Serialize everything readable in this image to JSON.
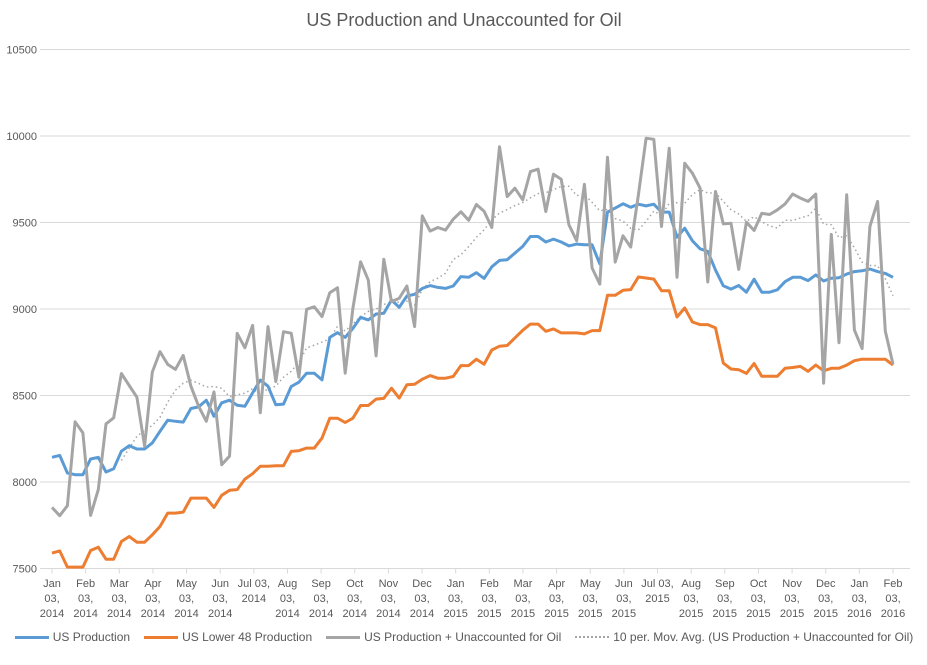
{
  "chart_data": {
    "type": "line",
    "title": "US Production and Unaccounted for Oil",
    "xlabel": "",
    "ylabel": "",
    "ylim": [
      7500,
      10500
    ],
    "yticks": [
      7500,
      8000,
      8500,
      9000,
      9500,
      10000,
      10500
    ],
    "grid": true,
    "legend_position": "bottom",
    "x_tick_labels": [
      [
        "Jan",
        "03,",
        "2014"
      ],
      [
        "Feb",
        "03,",
        "2014"
      ],
      [
        "Mar",
        "03,",
        "2014"
      ],
      [
        "Apr",
        "03,",
        "2014"
      ],
      [
        "May",
        "03,",
        "2014"
      ],
      [
        "Jun",
        "03,",
        "2014"
      ],
      [
        "Jul 03,",
        "2014"
      ],
      [
        "Aug",
        "03,",
        "2014"
      ],
      [
        "Sep",
        "03,",
        "2014"
      ],
      [
        "Oct",
        "03,",
        "2014"
      ],
      [
        "Nov",
        "03,",
        "2014"
      ],
      [
        "Dec",
        "03,",
        "2014"
      ],
      [
        "Jan",
        "03,",
        "2015"
      ],
      [
        "Feb",
        "03,",
        "2015"
      ],
      [
        "Mar",
        "03,",
        "2015"
      ],
      [
        "Apr",
        "03,",
        "2015"
      ],
      [
        "May",
        "03,",
        "2015"
      ],
      [
        "Jun",
        "03,",
        "2015"
      ],
      [
        "Jul 03,",
        "2015"
      ],
      [
        "Aug",
        "03,",
        "2015"
      ],
      [
        "Sep",
        "03,",
        "2015"
      ],
      [
        "Oct",
        "03,",
        "2015"
      ],
      [
        "Nov",
        "03,",
        "2015"
      ],
      [
        "Dec",
        "03,",
        "2015"
      ],
      [
        "Jan",
        "03,",
        "2016"
      ],
      [
        "Feb",
        "03,",
        "2016"
      ]
    ],
    "series": [
      {
        "name": "US Production",
        "color": "#5b9bd5",
        "style": "solid",
        "values": [
          8143,
          8154,
          8052,
          8042,
          8042,
          8133,
          8143,
          8058,
          8077,
          8178,
          8210,
          8191,
          8191,
          8226,
          8293,
          8357,
          8351,
          8346,
          8425,
          8434,
          8473,
          8380,
          8458,
          8473,
          8444,
          8438,
          8515,
          8589,
          8554,
          8446,
          8450,
          8552,
          8577,
          8629,
          8629,
          8590,
          8836,
          8863,
          8836,
          8888,
          8952,
          8937,
          8971,
          8975,
          9052,
          9010,
          9075,
          9085,
          9119,
          9135,
          9125,
          9119,
          9133,
          9187,
          9183,
          9210,
          9177,
          9244,
          9281,
          9285,
          9323,
          9362,
          9419,
          9419,
          9387,
          9404,
          9387,
          9365,
          9375,
          9371,
          9371,
          9260,
          9560,
          9583,
          9608,
          9588,
          9606,
          9596,
          9606,
          9560,
          9560,
          9415,
          9467,
          9394,
          9348,
          9333,
          9225,
          9134,
          9115,
          9136,
          9097,
          9172,
          9097,
          9097,
          9111,
          9158,
          9183,
          9183,
          9164,
          9197,
          9162,
          9178,
          9181,
          9202,
          9216,
          9221,
          9231,
          9216,
          9206,
          9183
        ]
      },
      {
        "name": "US Lower 48 Production",
        "color": "#ed7d31",
        "style": "solid",
        "values": [
          7589,
          7602,
          7508,
          7508,
          7508,
          7604,
          7623,
          7554,
          7554,
          7656,
          7685,
          7652,
          7652,
          7695,
          7743,
          7820,
          7820,
          7826,
          7907,
          7907,
          7907,
          7853,
          7923,
          7952,
          7956,
          8017,
          8048,
          8091,
          8091,
          8094,
          8094,
          8177,
          8181,
          8196,
          8196,
          8254,
          8369,
          8369,
          8344,
          8369,
          8442,
          8442,
          8479,
          8483,
          8542,
          8485,
          8562,
          8565,
          8594,
          8615,
          8600,
          8600,
          8610,
          8673,
          8673,
          8710,
          8681,
          8763,
          8785,
          8789,
          8833,
          8877,
          8913,
          8913,
          8871,
          8885,
          8862,
          8862,
          8862,
          8856,
          8875,
          8875,
          9079,
          9079,
          9108,
          9112,
          9185,
          9179,
          9173,
          9106,
          9106,
          8954,
          9006,
          8925,
          8910,
          8910,
          8891,
          8687,
          8653,
          8649,
          8628,
          8685,
          8611,
          8611,
          8611,
          8657,
          8662,
          8668,
          8640,
          8676,
          8643,
          8657,
          8657,
          8676,
          8701,
          8710,
          8710,
          8710,
          8710,
          8676
        ]
      },
      {
        "name": "US Production + Unaccounted for Oil",
        "color": "#a5a5a5",
        "style": "solid",
        "values": [
          7853,
          7805,
          7863,
          8348,
          8284,
          7807,
          7956,
          8336,
          8371,
          8627,
          8558,
          8490,
          8207,
          8635,
          8753,
          8680,
          8651,
          8732,
          8554,
          8438,
          8351,
          8521,
          8100,
          8149,
          8859,
          8776,
          8905,
          8400,
          8898,
          8581,
          8869,
          8860,
          8606,
          8998,
          9013,
          8956,
          9094,
          9123,
          8629,
          9004,
          9273,
          9167,
          8729,
          9288,
          9042,
          9062,
          9133,
          8898,
          9538,
          9450,
          9471,
          9456,
          9519,
          9562,
          9513,
          9604,
          9565,
          9471,
          9938,
          9650,
          9698,
          9631,
          9794,
          9808,
          9563,
          9779,
          9750,
          9487,
          9394,
          9721,
          9237,
          9144,
          9877,
          9271,
          9423,
          9358,
          9660,
          9987,
          9981,
          9477,
          9929,
          9183,
          9842,
          9785,
          9698,
          9156,
          9679,
          9492,
          9496,
          9229,
          9502,
          9454,
          9553,
          9546,
          9573,
          9607,
          9664,
          9641,
          9622,
          9664,
          8571,
          9431,
          8805,
          9660,
          8878,
          8771,
          9477,
          9622,
          8872,
          8681
        ]
      },
      {
        "name": "10 per. Mov. Avg. (US Production + Unaccounted for Oil)",
        "color": "#a5a5a5",
        "style": "dotted",
        "period": 10,
        "source_series": 2
      }
    ]
  }
}
